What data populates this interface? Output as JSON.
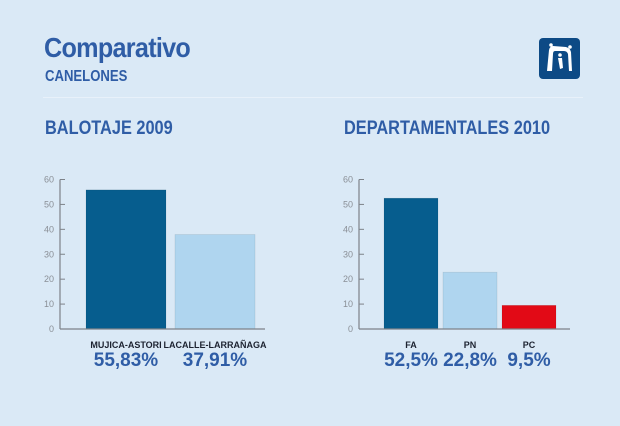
{
  "header": {
    "title": "Comparativo",
    "subtitle": "CANELONES",
    "logo_icon": "intendencia-canelones-logo-icon"
  },
  "colors": {
    "background": "#dae9f6",
    "title": "#2f5da6",
    "dark_blue": "#065d8e",
    "light_blue": "#afd5ef",
    "red": "#e20a16"
  },
  "chart_data": [
    {
      "type": "bar",
      "title": "BALOTAJE 2009",
      "categories": [
        "MUJICA-ASTORI",
        "LACALLE-LARRAÑAGA"
      ],
      "values": [
        55.83,
        37.91
      ],
      "value_labels": [
        "55,83%",
        "37,91%"
      ],
      "bar_colors": [
        "#065d8e",
        "#afd5ef"
      ],
      "ylim": [
        0,
        60
      ],
      "yticks": [
        "0",
        "10",
        "20",
        "30",
        "40",
        "50",
        "60"
      ],
      "xlabel": "",
      "ylabel": "",
      "grid": false,
      "legend": "none"
    },
    {
      "type": "bar",
      "title": "DEPARTAMENTALES 2010",
      "categories": [
        "FA",
        "PN",
        "PC"
      ],
      "values": [
        52.5,
        22.8,
        9.5
      ],
      "value_labels": [
        "52,5%",
        "22,8%",
        "9,5%"
      ],
      "bar_colors": [
        "#065d8e",
        "#afd5ef",
        "#e20a16"
      ],
      "ylim": [
        0,
        60
      ],
      "yticks": [
        "0",
        "10",
        "20",
        "30",
        "40",
        "50",
        "60"
      ],
      "xlabel": "",
      "ylabel": "",
      "grid": false,
      "legend": "none"
    }
  ]
}
